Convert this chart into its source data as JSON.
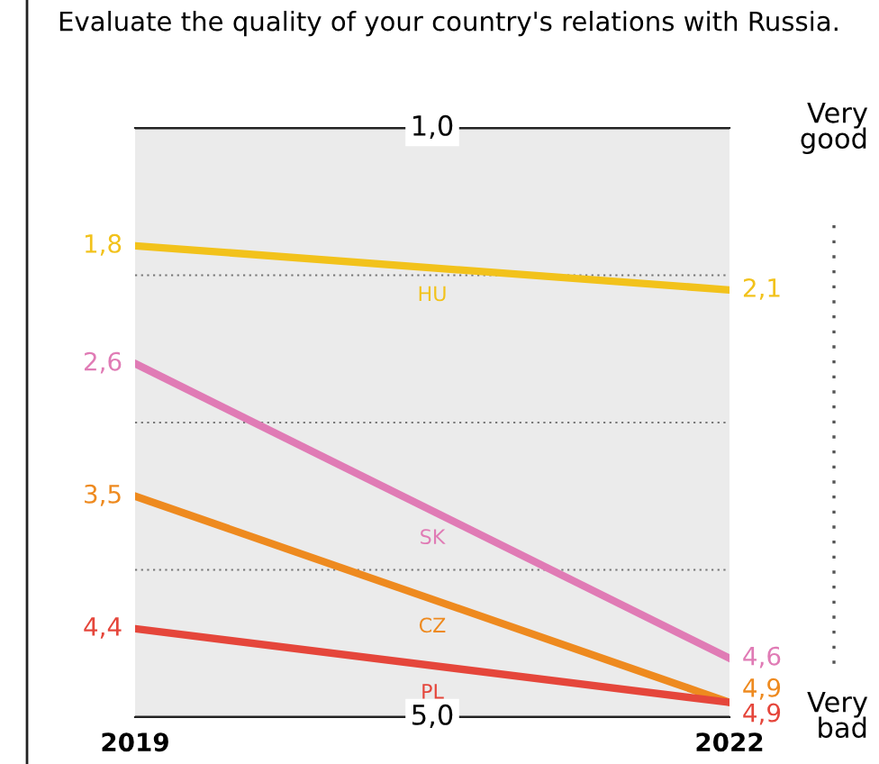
{
  "chart_data": {
    "type": "line",
    "title": "Evaluate the quality of your country's relations with Russia.",
    "x": [
      2019,
      2022
    ],
    "series": [
      {
        "name": "HU",
        "color": "#f2c21b",
        "values": [
          1.8,
          2.1
        ],
        "value_labels": [
          "1,8",
          "2,1"
        ]
      },
      {
        "name": "SK",
        "color": "#e07bb5",
        "values": [
          2.6,
          4.6
        ],
        "value_labels": [
          "2,6",
          "4,6"
        ]
      },
      {
        "name": "CZ",
        "color": "#ee8a1f",
        "values": [
          3.5,
          4.9
        ],
        "value_labels": [
          "3,5",
          "4,9"
        ]
      },
      {
        "name": "PL",
        "color": "#e5463b",
        "values": [
          4.4,
          4.9
        ],
        "value_labels": [
          "4,4",
          "4,9"
        ]
      }
    ],
    "xlim": [
      2019,
      2022
    ],
    "xticks": [
      2019,
      2022
    ],
    "ylim": [
      5,
      1
    ],
    "yticks": [
      {
        "value": 1,
        "label": "1,0"
      },
      {
        "value": 2,
        "label": null
      },
      {
        "value": 3,
        "label": null
      },
      {
        "value": 4,
        "label": null
      },
      {
        "value": 5,
        "label": "5,0"
      }
    ],
    "grid": "y",
    "legend": false,
    "marker": "none",
    "line_style": "solid",
    "annotations": [
      "Very\ngood",
      "Very\nbad"
    ]
  }
}
